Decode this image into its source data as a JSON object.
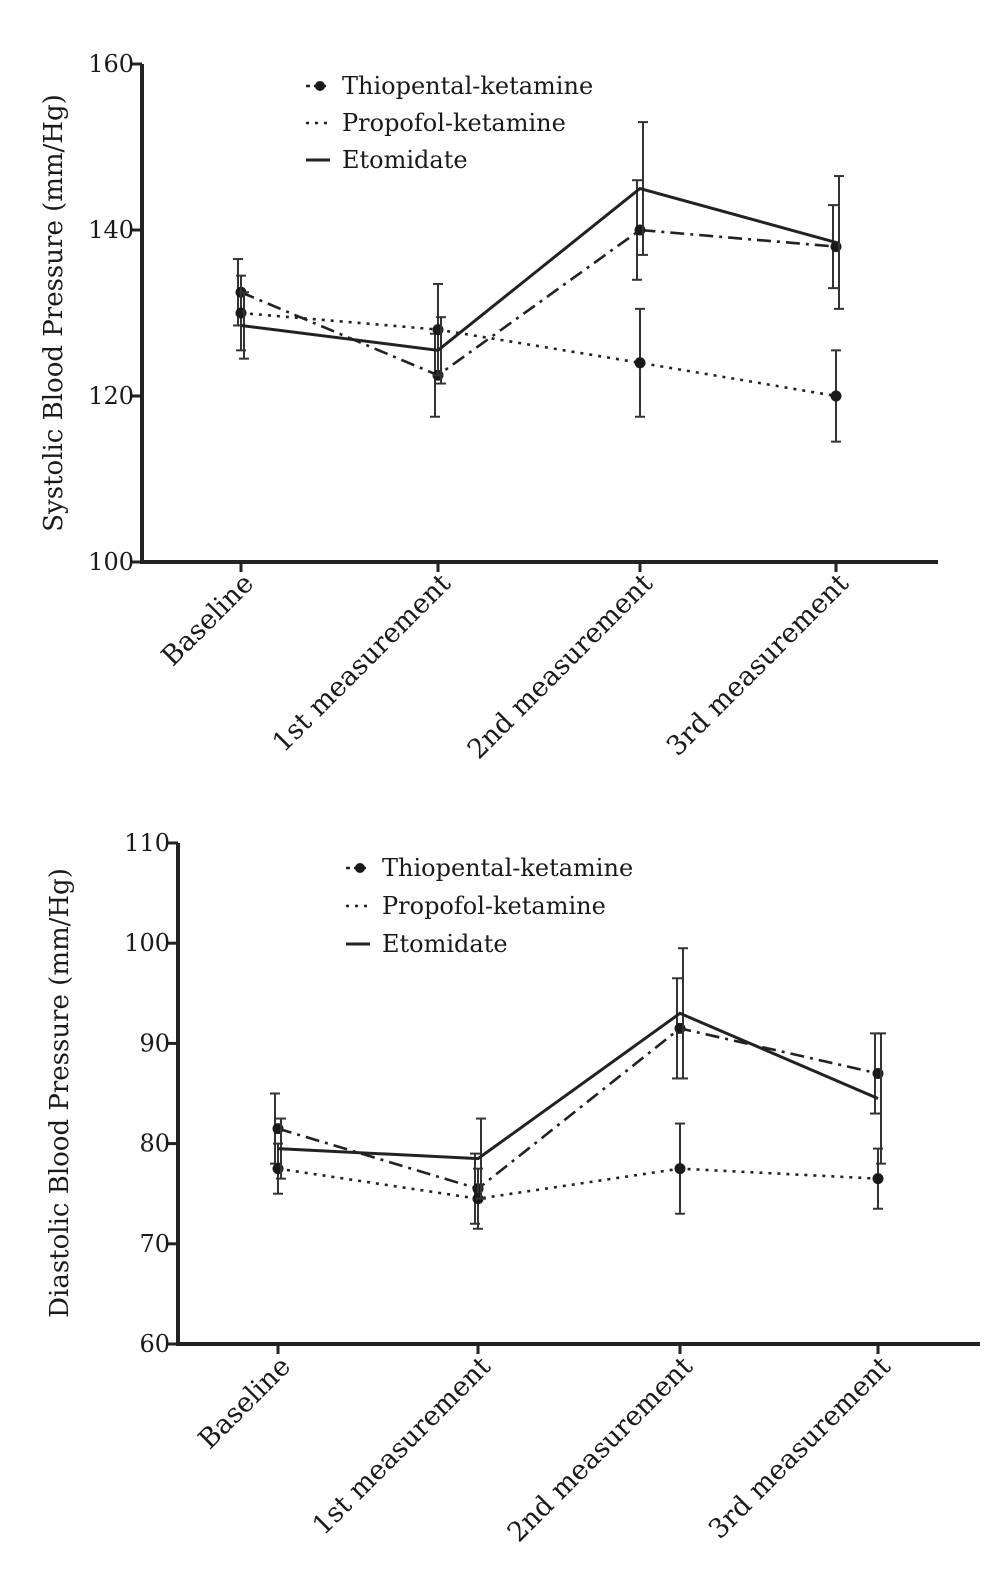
{
  "chart_data": [
    {
      "type": "line",
      "ylabel": "Systolic Blood Pressure (mm/Hg)",
      "xlabel": "",
      "categories": [
        "Baseline",
        "1st measurement",
        "2nd measurement",
        "3rd measurement"
      ],
      "ylim": [
        100,
        160
      ],
      "yticks": [
        "100",
        "120",
        "140",
        "160"
      ],
      "legend_position": "top-center",
      "grid": false,
      "series": [
        {
          "name": "Thiopental-ketamine",
          "style": "dash-dot",
          "marker": "circle",
          "values": [
            132.5,
            122.5,
            140,
            138
          ],
          "errors": [
            4,
            5,
            6,
            5
          ]
        },
        {
          "name": "Propofol-ketamine",
          "style": "dotted",
          "marker": "circle",
          "values": [
            130,
            128,
            124,
            120
          ],
          "errors": [
            4.5,
            5.5,
            6.5,
            5.5
          ]
        },
        {
          "name": "Etomidate",
          "style": "solid",
          "marker": "none",
          "values": [
            128.5,
            125.5,
            145,
            138.5
          ],
          "errors": [
            4,
            4,
            8,
            8
          ]
        }
      ]
    },
    {
      "type": "line",
      "ylabel": "Diastolic Blood Pressure (mm/Hg)",
      "xlabel": "",
      "categories": [
        "Baseline",
        "1st measurement",
        "2nd measurement",
        "3rd measurement"
      ],
      "ylim": [
        60,
        110
      ],
      "yticks": [
        "60",
        "70",
        "80",
        "90",
        "100",
        "110"
      ],
      "legend_position": "top-center",
      "grid": false,
      "series": [
        {
          "name": "Thiopental-ketamine",
          "style": "dash-dot",
          "marker": "circle",
          "values": [
            81.5,
            75.5,
            91.5,
            87
          ],
          "errors": [
            3.5,
            3.5,
            5,
            4
          ]
        },
        {
          "name": "Propofol-ketamine",
          "style": "dotted",
          "marker": "circle",
          "values": [
            77.5,
            74.5,
            77.5,
            76.5
          ],
          "errors": [
            2.5,
            3,
            4.5,
            3
          ]
        },
        {
          "name": "Etomidate",
          "style": "solid",
          "marker": "none",
          "values": [
            79.5,
            78.5,
            93,
            84.5
          ],
          "errors": [
            3,
            4,
            6.5,
            6.5
          ]
        }
      ]
    }
  ]
}
